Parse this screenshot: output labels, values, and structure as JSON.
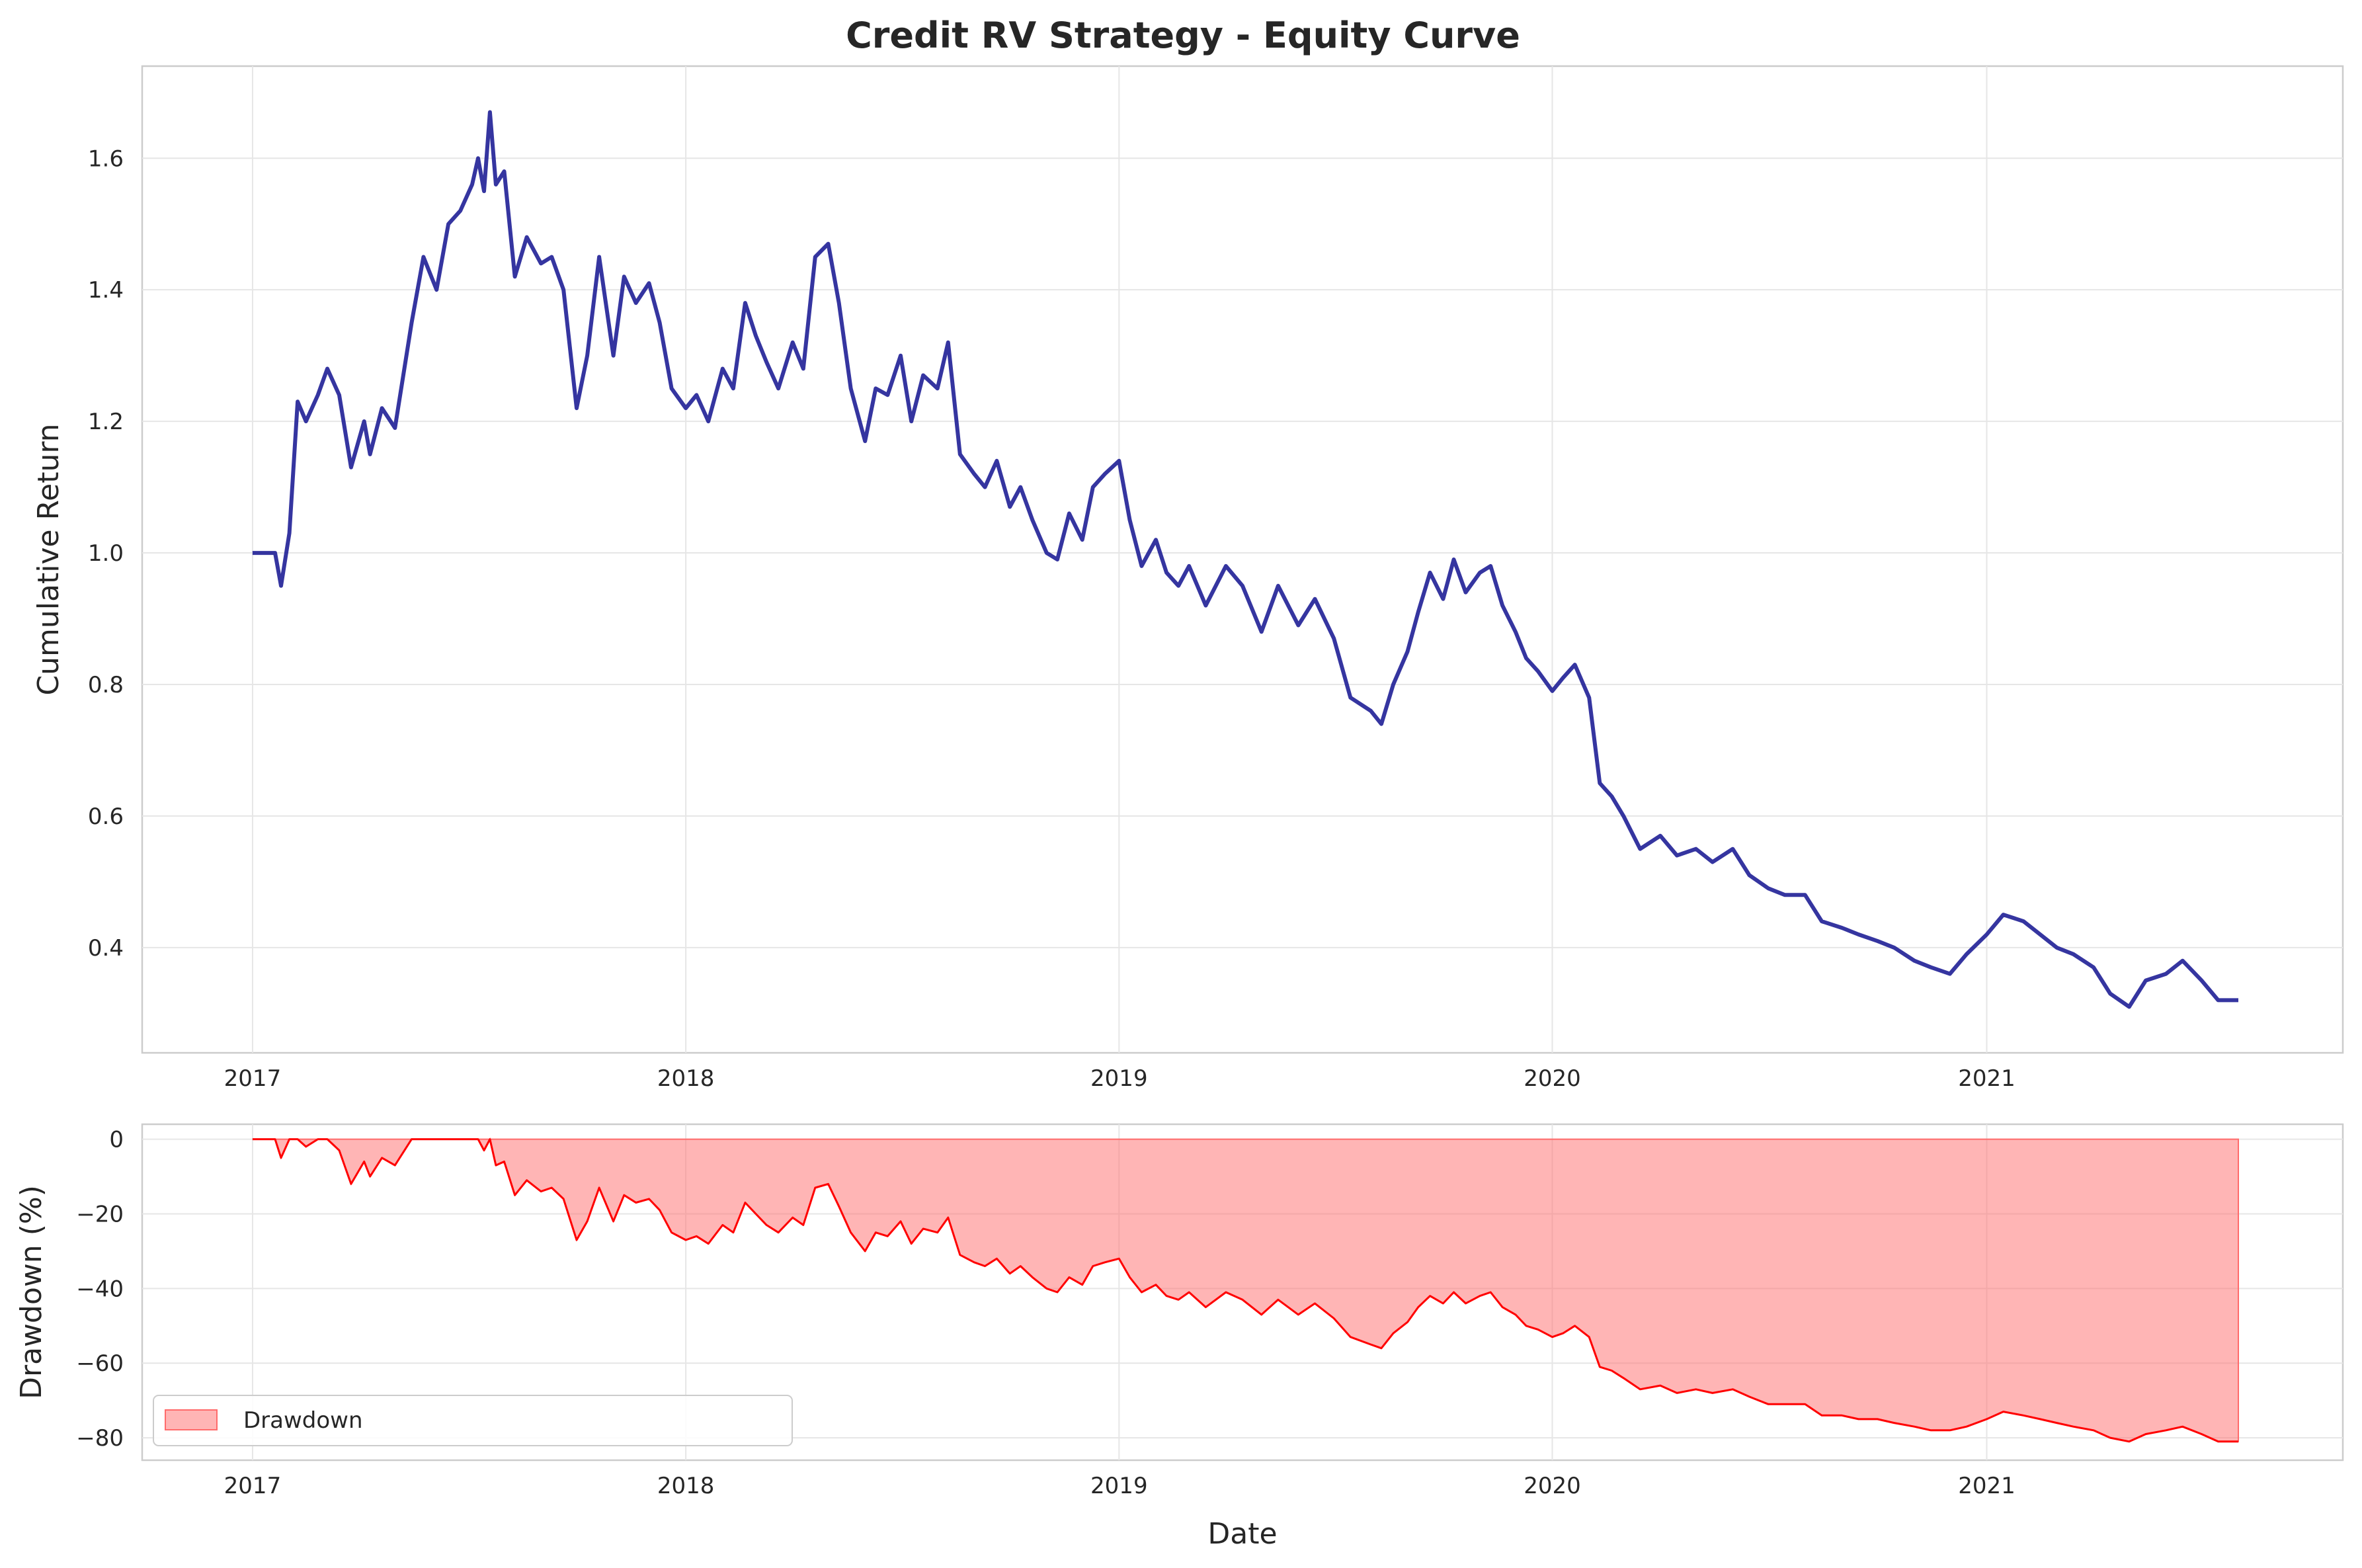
{
  "chart_data": [
    {
      "type": "line",
      "title": "Credit RV Strategy - Equity Curve",
      "xlabel": "",
      "ylabel": "Cumulative Return",
      "x_ticks": [
        "2017",
        "2018",
        "2019",
        "2020",
        "2021"
      ],
      "y_ticks": [
        "0.4",
        "0.6",
        "0.8",
        "1.0",
        "1.2",
        "1.4",
        "1.6"
      ],
      "xlim": [
        "2016-09-30",
        "2021-10-28"
      ],
      "ylim": [
        0.24,
        1.74
      ],
      "grid": true,
      "color": "#1f1f96",
      "series": [
        {
          "x": [
            "2017-01-01",
            "2017-01-20",
            "2017-01-25",
            "2017-02-01",
            "2017-02-08",
            "2017-02-15",
            "2017-02-25",
            "2017-03-05",
            "2017-03-15",
            "2017-03-25",
            "2017-04-05",
            "2017-04-10",
            "2017-04-20",
            "2017-05-01",
            "2017-05-15",
            "2017-05-25",
            "2017-06-05",
            "2017-06-15",
            "2017-06-25",
            "2017-07-05",
            "2017-07-10",
            "2017-07-15",
            "2017-07-20",
            "2017-07-25",
            "2017-08-01",
            "2017-08-10",
            "2017-08-20",
            "2017-09-01",
            "2017-09-10",
            "2017-09-20",
            "2017-10-01",
            "2017-10-10",
            "2017-10-20",
            "2017-11-01",
            "2017-11-10",
            "2017-11-20",
            "2017-12-01",
            "2017-12-10",
            "2017-12-20",
            "2018-01-01",
            "2018-01-10",
            "2018-01-20",
            "2018-02-01",
            "2018-02-10",
            "2018-02-20",
            "2018-03-01",
            "2018-03-10",
            "2018-03-20",
            "2018-04-01",
            "2018-04-10",
            "2018-04-20",
            "2018-05-01",
            "2018-05-10",
            "2018-05-20",
            "2018-06-01",
            "2018-06-10",
            "2018-06-20",
            "2018-07-01",
            "2018-07-10",
            "2018-07-20",
            "2018-08-01",
            "2018-08-10",
            "2018-08-20",
            "2018-09-01",
            "2018-09-10",
            "2018-09-20",
            "2018-10-01",
            "2018-10-10",
            "2018-10-20",
            "2018-11-01",
            "2018-11-10",
            "2018-11-20",
            "2018-12-01",
            "2018-12-10",
            "2018-12-20",
            "2019-01-01",
            "2019-01-10",
            "2019-01-20",
            "2019-02-01",
            "2019-02-10",
            "2019-02-20",
            "2019-03-01",
            "2019-03-15",
            "2019-04-01",
            "2019-04-15",
            "2019-05-01",
            "2019-05-15",
            "2019-06-01",
            "2019-06-15",
            "2019-07-01",
            "2019-07-15",
            "2019-08-01",
            "2019-08-10",
            "2019-08-20",
            "2019-09-01",
            "2019-09-10",
            "2019-09-20",
            "2019-10-01",
            "2019-10-10",
            "2019-10-20",
            "2019-11-01",
            "2019-11-10",
            "2019-11-20",
            "2019-12-01",
            "2019-12-10",
            "2019-12-20",
            "2020-01-01",
            "2020-01-10",
            "2020-01-20",
            "2020-02-01",
            "2020-02-10",
            "2020-02-20",
            "2020-03-01",
            "2020-03-15",
            "2020-04-01",
            "2020-04-15",
            "2020-05-01",
            "2020-05-15",
            "2020-06-01",
            "2020-06-15",
            "2020-07-01",
            "2020-07-15",
            "2020-08-01",
            "2020-08-15",
            "2020-09-01",
            "2020-09-15",
            "2020-10-01",
            "2020-10-15",
            "2020-11-01",
            "2020-11-15",
            "2020-12-01",
            "2020-12-15",
            "2021-01-01",
            "2021-01-15",
            "2021-02-01",
            "2021-02-15",
            "2021-03-01",
            "2021-03-15",
            "2021-04-01",
            "2021-04-15",
            "2021-05-01",
            "2021-05-15",
            "2021-06-01",
            "2021-06-15",
            "2021-07-01",
            "2021-07-15",
            "2021-08-01"
          ],
          "y": [
            1.0,
            1.0,
            0.95,
            1.03,
            1.23,
            1.2,
            1.24,
            1.28,
            1.24,
            1.13,
            1.2,
            1.15,
            1.22,
            1.19,
            1.35,
            1.45,
            1.4,
            1.5,
            1.52,
            1.56,
            1.6,
            1.55,
            1.67,
            1.56,
            1.58,
            1.42,
            1.48,
            1.44,
            1.45,
            1.4,
            1.22,
            1.3,
            1.45,
            1.3,
            1.42,
            1.38,
            1.41,
            1.35,
            1.25,
            1.22,
            1.24,
            1.2,
            1.28,
            1.25,
            1.38,
            1.33,
            1.29,
            1.25,
            1.32,
            1.28,
            1.45,
            1.47,
            1.38,
            1.25,
            1.17,
            1.25,
            1.24,
            1.3,
            1.2,
            1.27,
            1.25,
            1.32,
            1.15,
            1.12,
            1.1,
            1.14,
            1.07,
            1.1,
            1.05,
            1.0,
            0.99,
            1.06,
            1.02,
            1.1,
            1.12,
            1.14,
            1.05,
            0.98,
            1.02,
            0.97,
            0.95,
            0.98,
            0.92,
            0.98,
            0.95,
            0.88,
            0.95,
            0.89,
            0.93,
            0.87,
            0.78,
            0.76,
            0.74,
            0.8,
            0.85,
            0.91,
            0.97,
            0.93,
            0.99,
            0.94,
            0.97,
            0.98,
            0.92,
            0.88,
            0.84,
            0.82,
            0.79,
            0.81,
            0.83,
            0.78,
            0.65,
            0.63,
            0.6,
            0.55,
            0.57,
            0.54,
            0.55,
            0.53,
            0.55,
            0.51,
            0.49,
            0.48,
            0.48,
            0.44,
            0.43,
            0.42,
            0.41,
            0.4,
            0.38,
            0.37,
            0.36,
            0.39,
            0.42,
            0.45,
            0.44,
            0.42,
            0.4,
            0.39,
            0.37,
            0.33,
            0.31,
            0.35,
            0.36,
            0.38,
            0.35,
            0.32,
            0.32
          ]
        }
      ]
    },
    {
      "type": "area",
      "title": "",
      "xlabel": "Date",
      "ylabel": "Drawdown (%)",
      "x_ticks": [
        "2017",
        "2018",
        "2019",
        "2020",
        "2021"
      ],
      "y_ticks": [
        "0",
        "−20",
        "−40",
        "−60",
        "−80"
      ],
      "xlim": [
        "2016-09-30",
        "2021-10-28"
      ],
      "ylim": [
        -86,
        4
      ],
      "grid": true,
      "legend": {
        "position": "lower-left",
        "entries": [
          "Drawdown"
        ]
      },
      "line_color": "#ff0000",
      "fill_color": "#ff6b6b",
      "series": [
        {
          "name": "Drawdown",
          "x": [
            "2017-01-01",
            "2017-01-20",
            "2017-01-25",
            "2017-02-01",
            "2017-02-08",
            "2017-02-15",
            "2017-02-25",
            "2017-03-05",
            "2017-03-15",
            "2017-03-25",
            "2017-04-05",
            "2017-04-10",
            "2017-04-20",
            "2017-05-01",
            "2017-05-15",
            "2017-05-25",
            "2017-06-05",
            "2017-06-15",
            "2017-06-25",
            "2017-07-05",
            "2017-07-10",
            "2017-07-15",
            "2017-07-20",
            "2017-07-25",
            "2017-08-01",
            "2017-08-10",
            "2017-08-20",
            "2017-09-01",
            "2017-09-10",
            "2017-09-20",
            "2017-10-01",
            "2017-10-10",
            "2017-10-20",
            "2017-11-01",
            "2017-11-10",
            "2017-11-20",
            "2017-12-01",
            "2017-12-10",
            "2017-12-20",
            "2018-01-01",
            "2018-01-10",
            "2018-01-20",
            "2018-02-01",
            "2018-02-10",
            "2018-02-20",
            "2018-03-01",
            "2018-03-10",
            "2018-03-20",
            "2018-04-01",
            "2018-04-10",
            "2018-04-20",
            "2018-05-01",
            "2018-05-10",
            "2018-05-20",
            "2018-06-01",
            "2018-06-10",
            "2018-06-20",
            "2018-07-01",
            "2018-07-10",
            "2018-07-20",
            "2018-08-01",
            "2018-08-10",
            "2018-08-20",
            "2018-09-01",
            "2018-09-10",
            "2018-09-20",
            "2018-10-01",
            "2018-10-10",
            "2018-10-20",
            "2018-11-01",
            "2018-11-10",
            "2018-11-20",
            "2018-12-01",
            "2018-12-10",
            "2018-12-20",
            "2019-01-01",
            "2019-01-10",
            "2019-01-20",
            "2019-02-01",
            "2019-02-10",
            "2019-02-20",
            "2019-03-01",
            "2019-03-15",
            "2019-04-01",
            "2019-04-15",
            "2019-05-01",
            "2019-05-15",
            "2019-06-01",
            "2019-06-15",
            "2019-07-01",
            "2019-07-15",
            "2019-08-01",
            "2019-08-10",
            "2019-08-20",
            "2019-09-01",
            "2019-09-10",
            "2019-09-20",
            "2019-10-01",
            "2019-10-10",
            "2019-10-20",
            "2019-11-01",
            "2019-11-10",
            "2019-11-20",
            "2019-12-01",
            "2019-12-10",
            "2019-12-20",
            "2020-01-01",
            "2020-01-10",
            "2020-01-20",
            "2020-02-01",
            "2020-02-10",
            "2020-02-20",
            "2020-03-01",
            "2020-03-15",
            "2020-04-01",
            "2020-04-15",
            "2020-05-01",
            "2020-05-15",
            "2020-06-01",
            "2020-06-15",
            "2020-07-01",
            "2020-07-15",
            "2020-08-01",
            "2020-08-15",
            "2020-09-01",
            "2020-09-15",
            "2020-10-01",
            "2020-10-15",
            "2020-11-01",
            "2020-11-15",
            "2020-12-01",
            "2020-12-15",
            "2021-01-01",
            "2021-01-15",
            "2021-02-01",
            "2021-02-15",
            "2021-03-01",
            "2021-03-15",
            "2021-04-01",
            "2021-04-15",
            "2021-05-01",
            "2021-05-15",
            "2021-06-01",
            "2021-06-15",
            "2021-07-01",
            "2021-07-15",
            "2021-08-01"
          ],
          "y": [
            0,
            0,
            -5,
            0,
            0,
            -2,
            0,
            0,
            -3,
            -12,
            -6,
            -10,
            -5,
            -7,
            0,
            0,
            0,
            0,
            0,
            0,
            0,
            -3,
            0,
            -7,
            -6,
            -15,
            -11,
            -14,
            -13,
            -16,
            -27,
            -22,
            -13,
            -22,
            -15,
            -17,
            -16,
            -19,
            -25,
            -27,
            -26,
            -28,
            -23,
            -25,
            -17,
            -20,
            -23,
            -25,
            -21,
            -23,
            -13,
            -12,
            -18,
            -25,
            -30,
            -25,
            -26,
            -22,
            -28,
            -24,
            -25,
            -21,
            -31,
            -33,
            -34,
            -32,
            -36,
            -34,
            -37,
            -40,
            -41,
            -37,
            -39,
            -34,
            -33,
            -32,
            -37,
            -41,
            -39,
            -42,
            -43,
            -41,
            -45,
            -41,
            -43,
            -47,
            -43,
            -47,
            -44,
            -48,
            -53,
            -55,
            -56,
            -52,
            -49,
            -45,
            -42,
            -44,
            -41,
            -44,
            -42,
            -41,
            -45,
            -47,
            -50,
            -51,
            -53,
            -52,
            -50,
            -53,
            -61,
            -62,
            -64,
            -67,
            -66,
            -68,
            -67,
            -68,
            -67,
            -69,
            -71,
            -71,
            -71,
            -74,
            -74,
            -75,
            -75,
            -76,
            -77,
            -78,
            -78,
            -77,
            -75,
            -73,
            -74,
            -75,
            -76,
            -77,
            -78,
            -80,
            -81,
            -79,
            -78,
            -77,
            -79,
            -81,
            -81
          ]
        }
      ]
    }
  ]
}
